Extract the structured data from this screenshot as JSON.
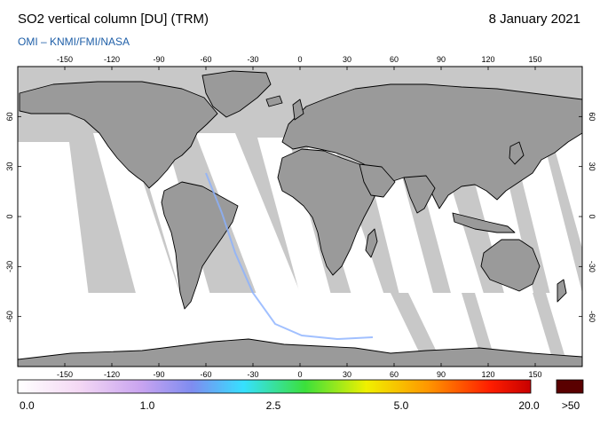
{
  "header": {
    "title": "SO2 vertical column [DU] (TRM)",
    "date": "8 January 2021",
    "credit": "OMI  –  KNMI/FMI/NASA"
  },
  "map": {
    "lon_ticks": [
      "-150",
      "-120",
      "-90",
      "-60",
      "-30",
      "0",
      "30",
      "60",
      "90",
      "120",
      "150"
    ],
    "lat_ticks": [
      "60",
      "30",
      "0",
      "-30",
      "-60"
    ],
    "colors": {
      "nodata": "#c8c8c8",
      "land": "#9a9a9a",
      "swath": "#ffffff",
      "coast": "#000000"
    }
  },
  "colorbar": {
    "labels": [
      "0.0",
      "1.0",
      "2.5",
      "5.0",
      "20.0"
    ],
    "over_label": ">50",
    "over_color": "#5a0000",
    "gradient_colors": [
      "#ffffff",
      "#f4d8f4",
      "#c9a4f0",
      "#7e8cf0",
      "#36e0ff",
      "#3be03b",
      "#f0f000",
      "#ff9600",
      "#ff1e00",
      "#c80000"
    ]
  }
}
